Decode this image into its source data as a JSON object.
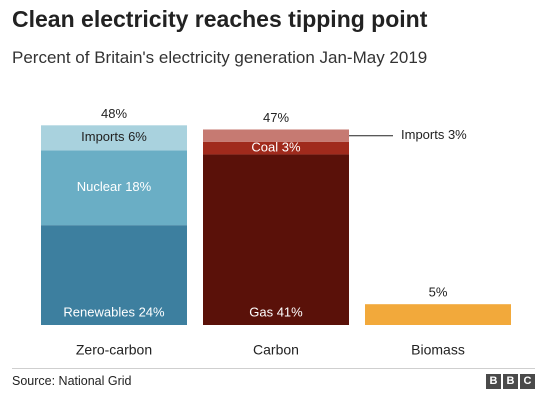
{
  "header": {
    "title": "Clean electricity reaches tipping point",
    "subtitle": "Percent of Britain's electricity generation Jan-May 2019"
  },
  "footer": {
    "source": "Source: National Grid",
    "logo_letters": [
      "B",
      "B",
      "C"
    ]
  },
  "chart_data": {
    "type": "bar",
    "stacked": true,
    "categories": [
      "Zero-carbon",
      "Carbon",
      "Biomass"
    ],
    "totals": [
      {
        "category": "Zero-carbon",
        "label": "48%",
        "value": 48
      },
      {
        "category": "Carbon",
        "label": "47%",
        "value": 47
      },
      {
        "category": "Biomass",
        "label": "5%",
        "value": 5
      }
    ],
    "bars": [
      {
        "category": "Zero-carbon",
        "segments": [
          {
            "name": "Renewables",
            "label": "Renewables 24%",
            "value": 24,
            "color": "#3d7f9f",
            "label_color": "#ffffff"
          },
          {
            "name": "Nuclear",
            "label": "Nuclear 18%",
            "value": 18,
            "color": "#6aaec5",
            "label_color": "#ffffff"
          },
          {
            "name": "Imports",
            "label": "Imports 6%",
            "value": 6,
            "color": "#a9d2de",
            "label_color": "#222222"
          }
        ]
      },
      {
        "category": "Carbon",
        "segments": [
          {
            "name": "Gas",
            "label": "Gas 41%",
            "value": 41,
            "color": "#5a1109",
            "label_color": "#ffffff"
          },
          {
            "name": "Coal",
            "label": "Coal 3%",
            "value": 3,
            "color": "#a02a1c",
            "label_color": "#ffffff"
          },
          {
            "name": "Imports",
            "label": "Imports 3%",
            "value": 3,
            "color": "#c67a72",
            "label_color": "#222222",
            "callout": true
          }
        ]
      },
      {
        "category": "Biomass",
        "segments": [
          {
            "name": "Biomass",
            "label": "",
            "value": 5,
            "color": "#f2a93b",
            "label_color": "#222222"
          }
        ]
      }
    ],
    "ylim": [
      0,
      48
    ],
    "grid": false,
    "legend": "none"
  }
}
